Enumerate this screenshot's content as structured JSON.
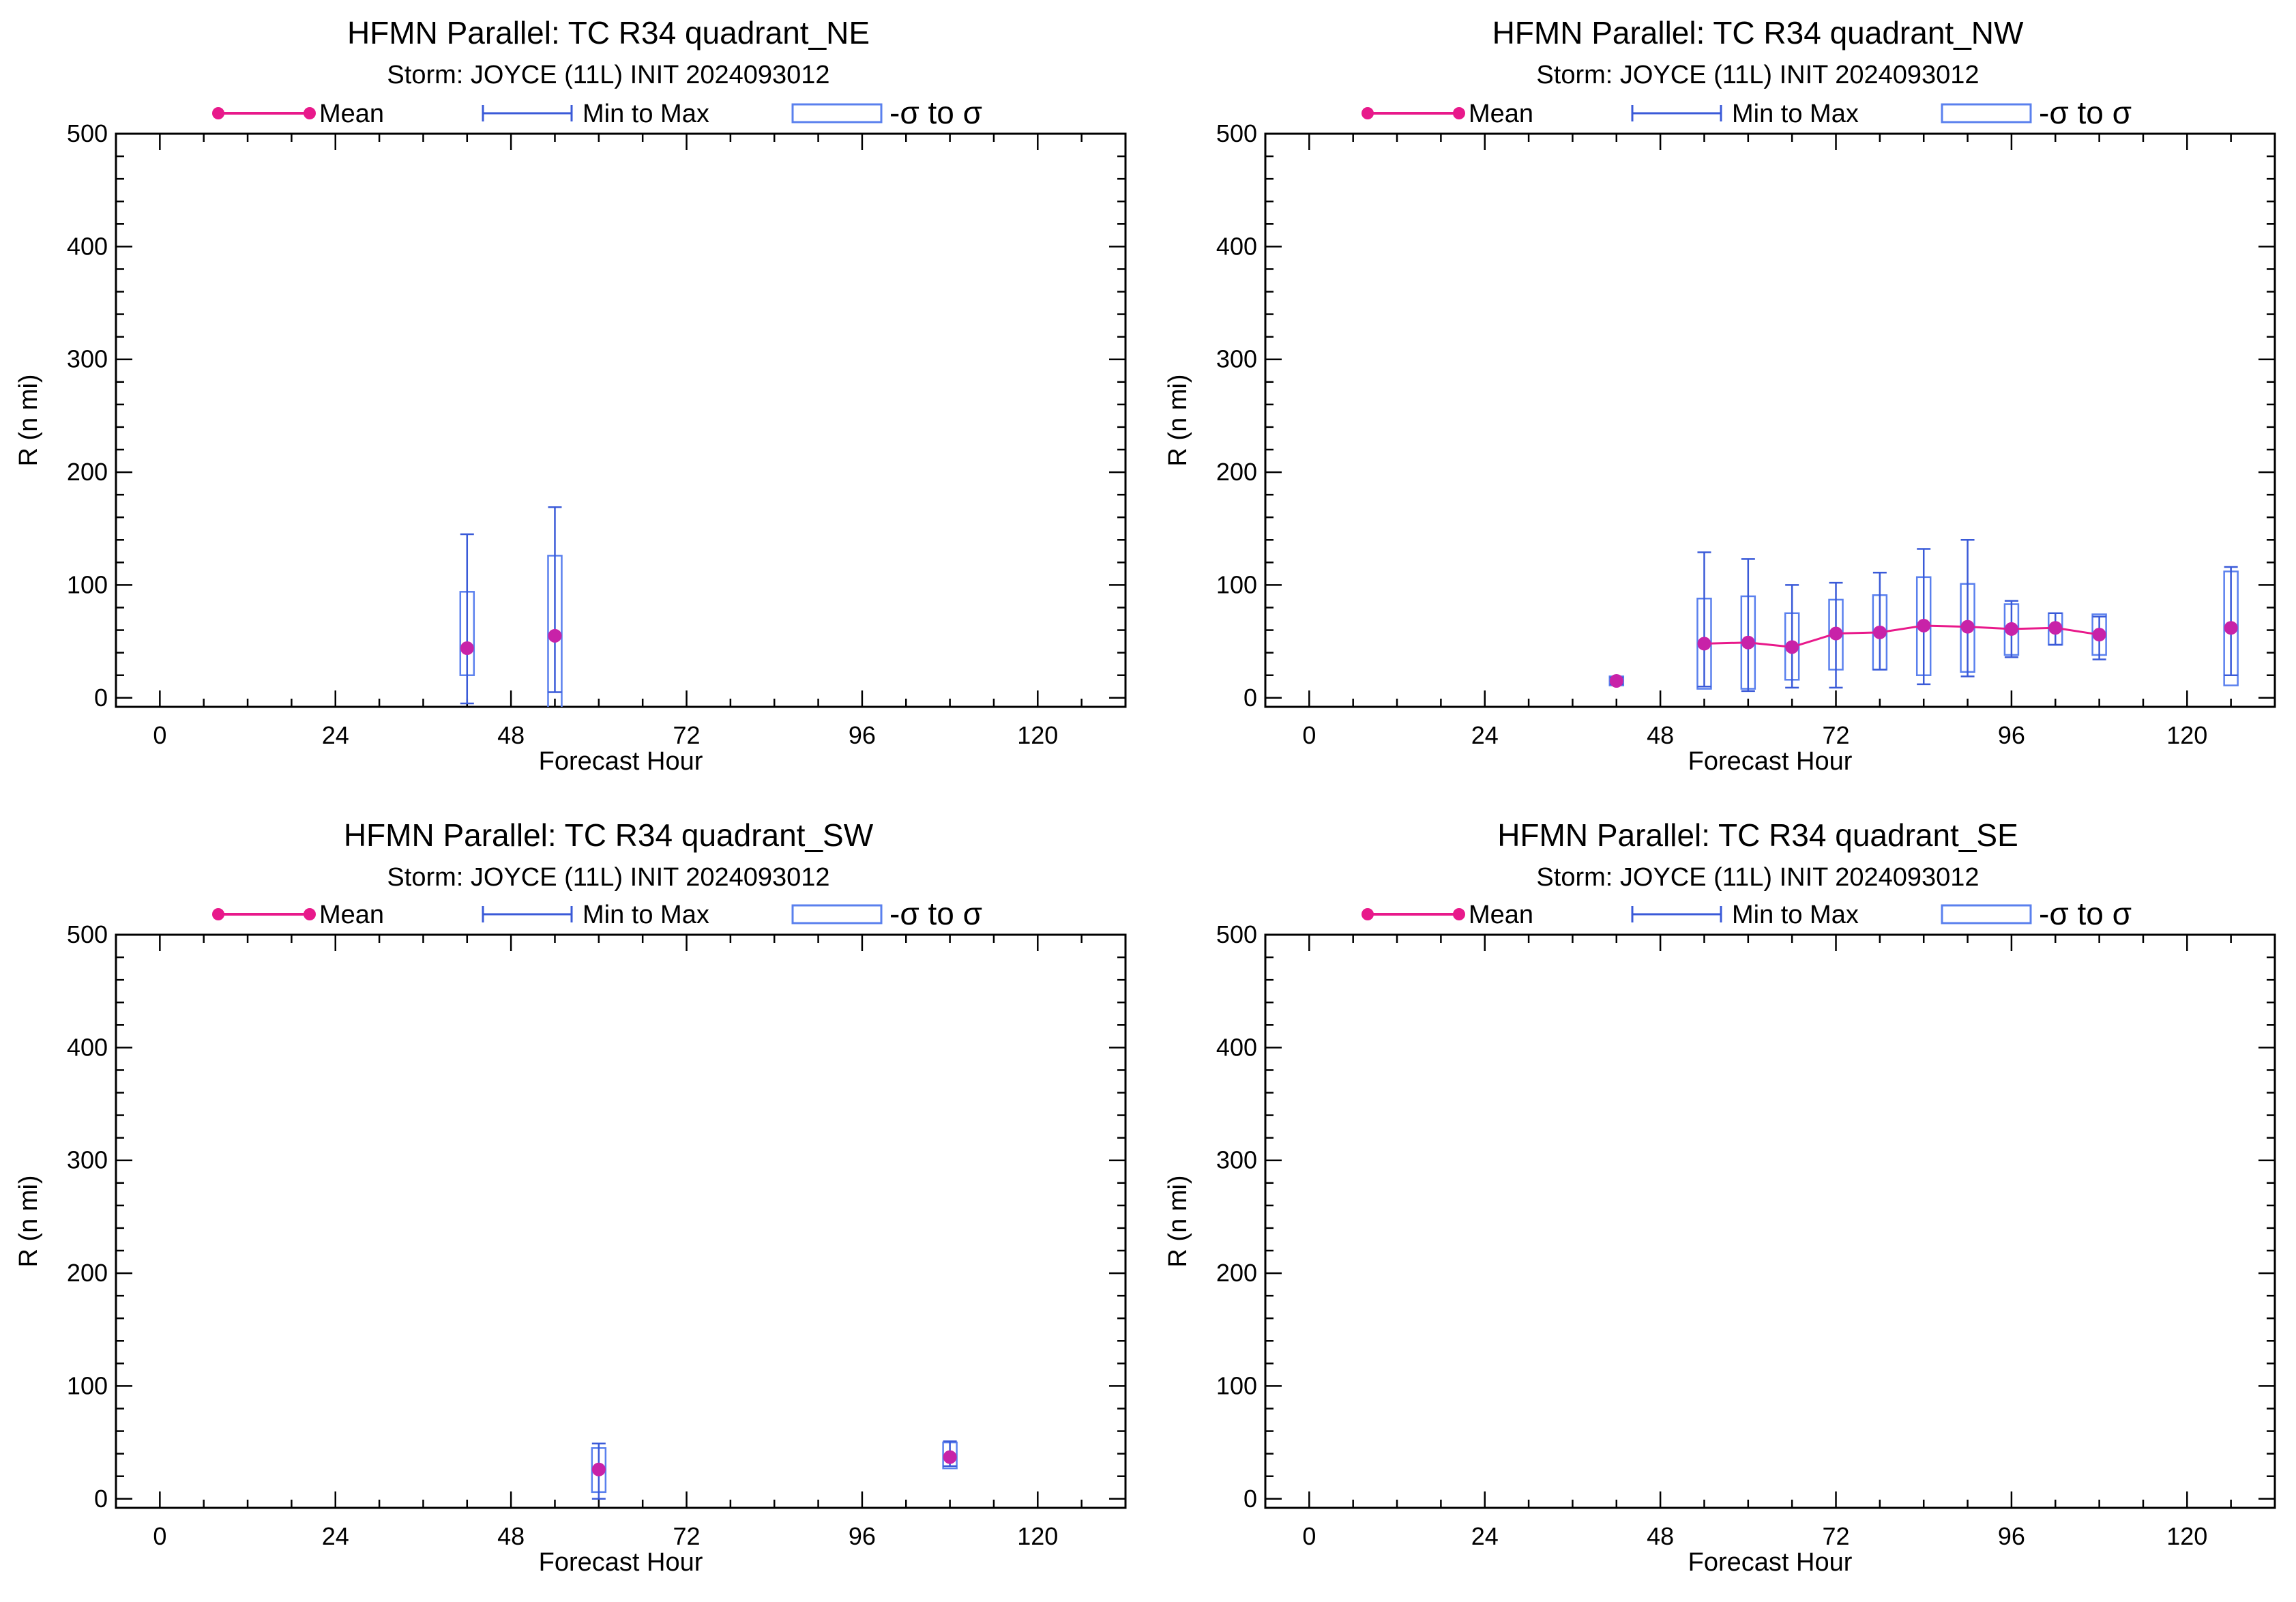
{
  "colors": {
    "mean": "#e8198b",
    "mean_marker": "#c822a8",
    "range": "#3a5ad8",
    "sigma_box": "#5a80ee",
    "axis": "#000000"
  },
  "legend": {
    "mean": "Mean",
    "range": "Min to Max",
    "sigma": "-σ to σ"
  },
  "chart_data": [
    {
      "type": "box",
      "title": "HFMN Parallel: TC  R34 quadrant_NE",
      "subtitle": "Storm: JOYCE (11L) INIT 2024093012",
      "xlabel": "Forecast Hour",
      "ylabel": "R (n mi)",
      "xlim": [
        -6,
        132
      ],
      "ylim": [
        -8,
        500
      ],
      "xticks": [
        "0",
        "24",
        "48",
        "72",
        "96",
        "120"
      ],
      "yticks": [
        "0",
        "100",
        "200",
        "300",
        "400",
        "500"
      ],
      "points": [
        {
          "x": 42,
          "mean": 44,
          "min": -5,
          "max": 145,
          "lo": 20,
          "hi": 94
        },
        {
          "x": 54,
          "mean": 55,
          "min": 5,
          "max": 169,
          "lo": -18,
          "hi": 126
        }
      ]
    },
    {
      "type": "box",
      "title": "HFMN Parallel: TC  R34 quadrant_NW",
      "subtitle": "Storm: JOYCE (11L) INIT 2024093012",
      "xlabel": "Forecast Hour",
      "ylabel": "R (n mi)",
      "xlim": [
        -6,
        132
      ],
      "ylim": [
        -8,
        500
      ],
      "xticks": [
        "0",
        "24",
        "48",
        "72",
        "96",
        "120"
      ],
      "yticks": [
        "0",
        "100",
        "200",
        "300",
        "400",
        "500"
      ],
      "points": [
        {
          "x": 42,
          "mean": 15,
          "min": 12,
          "max": 18,
          "lo": 11,
          "hi": 19
        },
        {
          "x": 54,
          "mean": 48,
          "min": 10,
          "max": 129,
          "lo": 8,
          "hi": 88
        },
        {
          "x": 60,
          "mean": 49,
          "min": 6,
          "max": 123,
          "lo": 8,
          "hi": 90
        },
        {
          "x": 66,
          "mean": 45,
          "min": 9,
          "max": 100,
          "lo": 16,
          "hi": 75
        },
        {
          "x": 72,
          "mean": 57,
          "min": 9,
          "max": 102,
          "lo": 25,
          "hi": 87
        },
        {
          "x": 78,
          "mean": 58,
          "min": 25,
          "max": 111,
          "lo": 25,
          "hi": 91
        },
        {
          "x": 84,
          "mean": 64,
          "min": 12,
          "max": 132,
          "lo": 20,
          "hi": 107
        },
        {
          "x": 90,
          "mean": 63,
          "min": 19,
          "max": 140,
          "lo": 23,
          "hi": 101
        },
        {
          "x": 96,
          "mean": 61,
          "min": 36,
          "max": 86,
          "lo": 38,
          "hi": 83
        },
        {
          "x": 102,
          "mean": 62,
          "min": 47,
          "max": 75,
          "lo": 47,
          "hi": 75
        },
        {
          "x": 108,
          "mean": 56,
          "min": 34,
          "max": 72,
          "lo": 38,
          "hi": 74
        },
        {
          "x": 126,
          "mean": 62,
          "min": 20,
          "max": 116,
          "lo": 11,
          "hi": 112
        }
      ]
    },
    {
      "type": "box",
      "title": "HFMN Parallel: TC  R34 quadrant_SW",
      "subtitle": "Storm: JOYCE (11L) INIT 2024093012",
      "xlabel": "Forecast Hour",
      "ylabel": "R (n mi)",
      "xlim": [
        -6,
        132
      ],
      "ylim": [
        -8,
        500
      ],
      "xticks": [
        "0",
        "24",
        "48",
        "72",
        "96",
        "120"
      ],
      "yticks": [
        "0",
        "100",
        "200",
        "300",
        "400",
        "500"
      ],
      "points": [
        {
          "x": 60,
          "mean": 26,
          "min": 0,
          "max": 49,
          "lo": 6,
          "hi": 45
        },
        {
          "x": 108,
          "mean": 37,
          "min": 29,
          "max": 51,
          "lo": 27,
          "hi": 50
        }
      ]
    },
    {
      "type": "box",
      "title": "HFMN Parallel: TC  R34 quadrant_SE",
      "subtitle": "Storm: JOYCE (11L) INIT 2024093012",
      "xlabel": "Forecast Hour",
      "ylabel": "R (n mi)",
      "xlim": [
        -6,
        132
      ],
      "ylim": [
        -8,
        500
      ],
      "xticks": [
        "0",
        "24",
        "48",
        "72",
        "96",
        "120"
      ],
      "yticks": [
        "0",
        "100",
        "200",
        "300",
        "400",
        "500"
      ],
      "points": []
    }
  ]
}
